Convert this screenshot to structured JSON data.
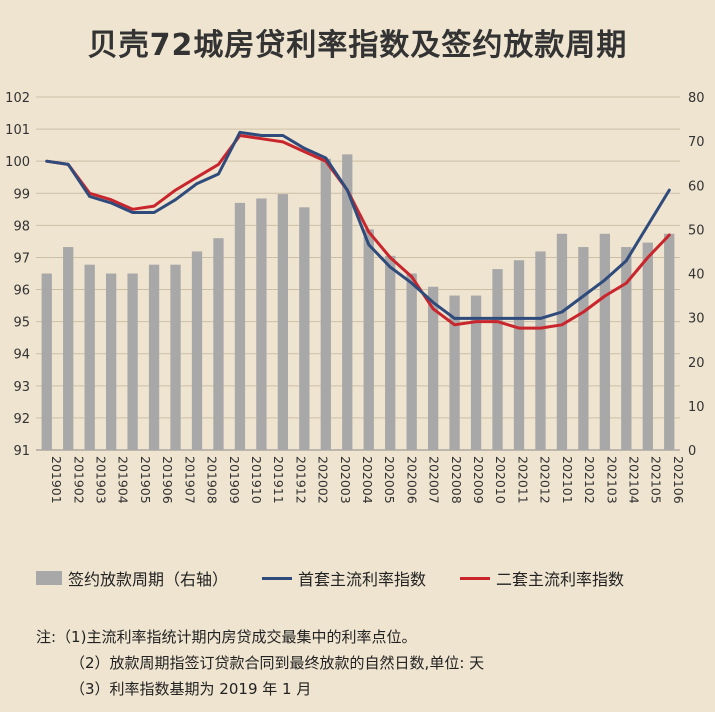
{
  "title": "贝壳72城房贷利率指数及签约放款周期",
  "legend": {
    "bars": "签约放款周期（右轴）",
    "first": "首套主流利率指数",
    "second": "二套主流利率指数"
  },
  "notes": {
    "n1": "注:（1)主流利率指统计期内房贷成交最集中的利率点位。",
    "n2": "（2）放款周期指签订贷款合同到最终放款的自然日数,单位: 天",
    "n3": "（3）利率指数基期为 2019 年 1 月"
  },
  "colors": {
    "bar": "#a8a8a8",
    "first": "#2f4b7c",
    "second": "#c9252c"
  },
  "chart_data": {
    "type": "bar+line",
    "title": "贝壳72城房贷利率指数及签约放款周期",
    "categories": [
      "201901",
      "201902",
      "201903",
      "201904",
      "201905",
      "201906",
      "201907",
      "201908",
      "201909",
      "201910",
      "201911",
      "201912",
      "202001",
      "202002",
      "202003",
      "202004",
      "202005",
      "202006",
      "202007",
      "202008",
      "202009",
      "202010",
      "202011",
      "202012",
      "202101",
      "202102",
      "202103",
      "202104",
      "202105",
      "202106"
    ],
    "tick_labels": [
      "201901",
      "201902",
      "201903",
      "201904",
      "201905",
      "201906",
      "201907",
      "201908",
      "201909",
      "201910",
      "201911",
      "201912",
      "202002",
      "202003",
      "202004",
      "202005",
      "202006",
      "202007",
      "202008",
      "202009",
      "202010",
      "202011",
      "202012",
      "202101",
      "202102",
      "202103",
      "202104",
      "202105",
      "202106"
    ],
    "left_axis": {
      "min": 91,
      "max": 102,
      "ticks": [
        91,
        92,
        93,
        94,
        95,
        96,
        97,
        98,
        99,
        100,
        101,
        102
      ]
    },
    "right_axis": {
      "min": 0,
      "max": 80,
      "ticks": [
        0,
        10,
        20,
        30,
        40,
        50,
        60,
        70,
        80
      ]
    },
    "series": [
      {
        "name": "签约放款周期（右轴）",
        "type": "bar",
        "axis": "right",
        "values": [
          40,
          46,
          42,
          40,
          40,
          42,
          42,
          45,
          48,
          56,
          57,
          58,
          55,
          66,
          67,
          50,
          44,
          40,
          37,
          35,
          35,
          41,
          43,
          45,
          49,
          46,
          49,
          46,
          47,
          49
        ]
      },
      {
        "name": "首套主流利率指数",
        "type": "line",
        "axis": "left",
        "values": [
          100.0,
          99.9,
          98.9,
          98.7,
          98.4,
          98.4,
          98.8,
          99.3,
          99.6,
          100.9,
          100.8,
          100.8,
          100.4,
          100.1,
          99.1,
          97.4,
          96.7,
          96.2,
          95.6,
          95.1,
          95.1,
          95.1,
          95.1,
          95.1,
          95.3,
          95.8,
          96.3,
          96.9,
          98.0,
          99.1
        ]
      },
      {
        "name": "二套主流利率指数",
        "type": "line",
        "axis": "left",
        "values": [
          100.0,
          99.9,
          99.0,
          98.8,
          98.5,
          98.6,
          99.1,
          99.5,
          99.9,
          100.8,
          100.7,
          100.6,
          100.3,
          100.0,
          99.1,
          97.8,
          97.0,
          96.4,
          95.4,
          94.9,
          95.0,
          95.0,
          94.8,
          94.8,
          94.9,
          95.3,
          95.8,
          96.2,
          97.0,
          97.7
        ]
      }
    ],
    "grid": true
  }
}
